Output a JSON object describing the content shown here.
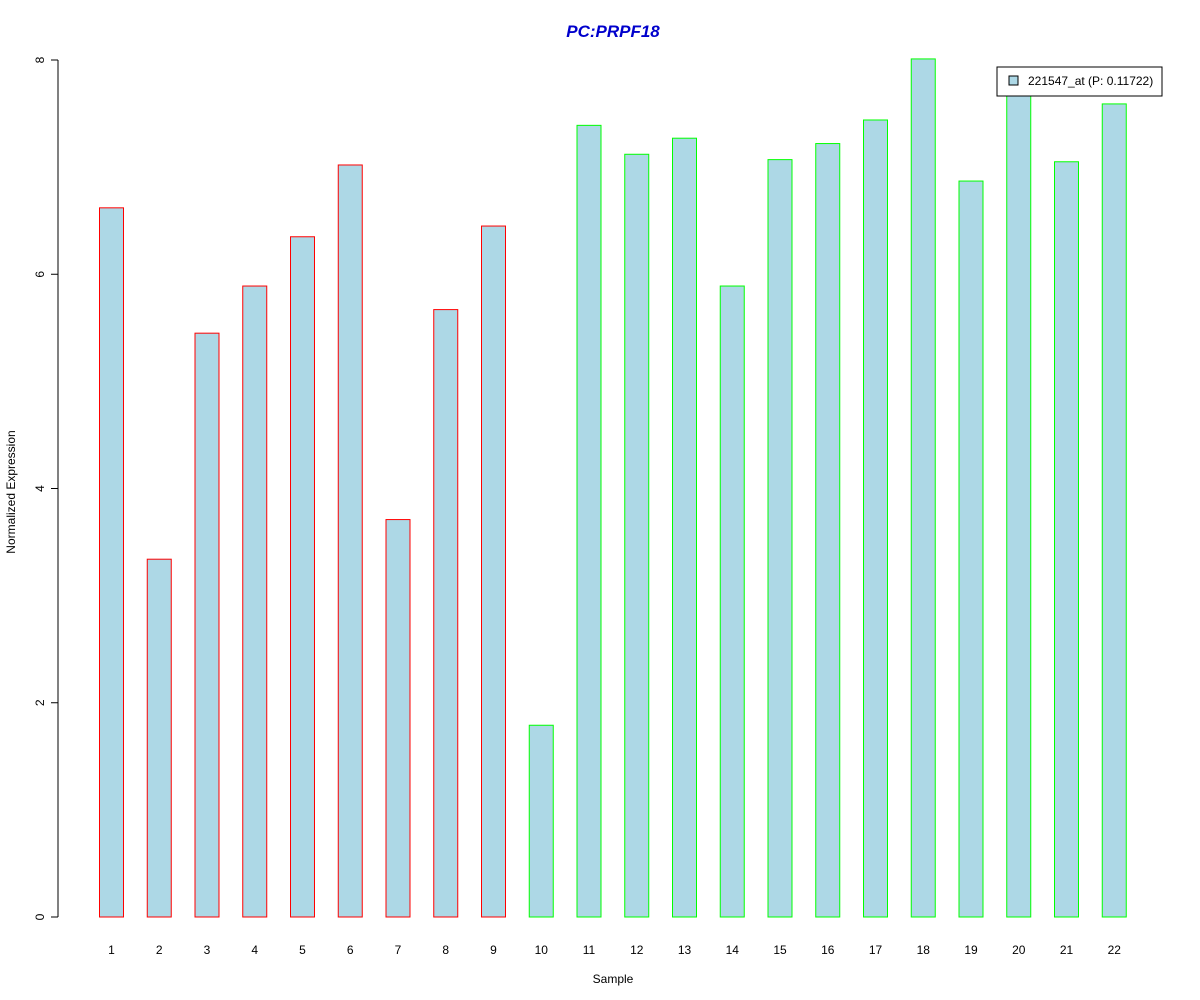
{
  "chart_data": {
    "type": "bar",
    "title": "PC:PRPF18",
    "title_color": "#0000cc",
    "xlabel": "Sample",
    "ylabel": "Normalized Expression",
    "ylim": [
      0,
      8
    ],
    "yticks": [
      0,
      2,
      4,
      6,
      8
    ],
    "grid": false,
    "categories": [
      "1",
      "2",
      "3",
      "4",
      "5",
      "6",
      "7",
      "8",
      "9",
      "10",
      "11",
      "12",
      "13",
      "14",
      "15",
      "16",
      "17",
      "18",
      "19",
      "20",
      "21",
      "22"
    ],
    "values": [
      6.62,
      3.34,
      5.45,
      5.89,
      6.35,
      7.02,
      3.71,
      5.67,
      6.45,
      1.79,
      7.39,
      7.12,
      7.27,
      5.89,
      7.07,
      7.22,
      7.44,
      8.01,
      6.87,
      7.72,
      7.05,
      7.59
    ],
    "fill_color": "#add8e6",
    "border_colors": [
      "#ff0000",
      "#ff0000",
      "#ff0000",
      "#ff0000",
      "#ff0000",
      "#ff0000",
      "#ff0000",
      "#ff0000",
      "#ff0000",
      "#00ff00",
      "#00ff00",
      "#00ff00",
      "#00ff00",
      "#00ff00",
      "#00ff00",
      "#00ff00",
      "#00ff00",
      "#00ff00",
      "#00ff00",
      "#00ff00",
      "#00ff00",
      "#00ff00"
    ],
    "legend": {
      "position": "top-right",
      "entries": [
        {
          "label": "221547_at (P: 0.11722)",
          "color": "#add8e6"
        }
      ]
    }
  }
}
